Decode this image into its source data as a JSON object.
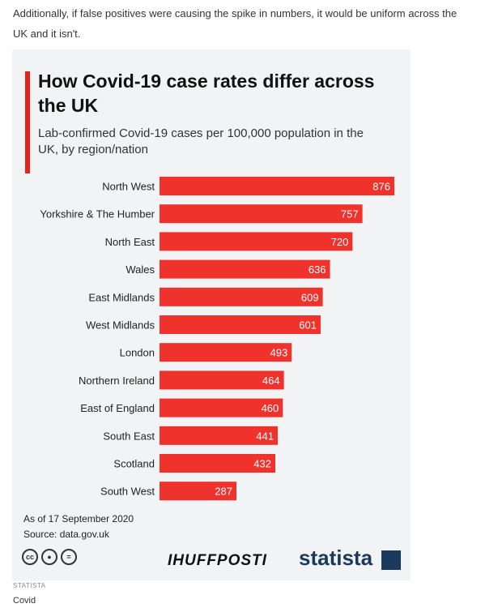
{
  "intro_text": "Additionally, if false positives were causing the spike in numbers, it would be uniform across the UK and it isn't.",
  "infographic": {
    "title": "How Covid-19 case rates differ across the UK",
    "subtitle": "Lab-confirmed Covid-19 cases per 100,000 population in the UK, by region/nation",
    "date_note": "As of 17 September 2020",
    "source_note": "Source: data.gov.uk",
    "brand_huffpost": "IHUFFPOSTI",
    "brand_statista": "statista",
    "license_icons": [
      "cc-icon",
      "attribution-icon",
      "no-derivatives-icon"
    ]
  },
  "chart_data": {
    "type": "bar",
    "orientation": "horizontal",
    "categories": [
      "North West",
      "Yorkshire & The Humber",
      "North East",
      "Wales",
      "East Midlands",
      "West Midlands",
      "London",
      "Northern Ireland",
      "East of England",
      "South East",
      "Scotland",
      "South West"
    ],
    "values": [
      876,
      757,
      720,
      636,
      609,
      601,
      493,
      464,
      460,
      441,
      432,
      287
    ],
    "title": "How Covid-19 case rates differ across the UK",
    "subtitle": "Lab-confirmed Covid-19 cases per 100,000 population in the UK, by region/nation",
    "xlim": [
      0,
      876
    ],
    "bar_color": "#f0322c",
    "label_color": "#ffffff",
    "grid": false,
    "legend": "none"
  },
  "image_caption": {
    "source": "STATISTA",
    "text": "Covid"
  }
}
